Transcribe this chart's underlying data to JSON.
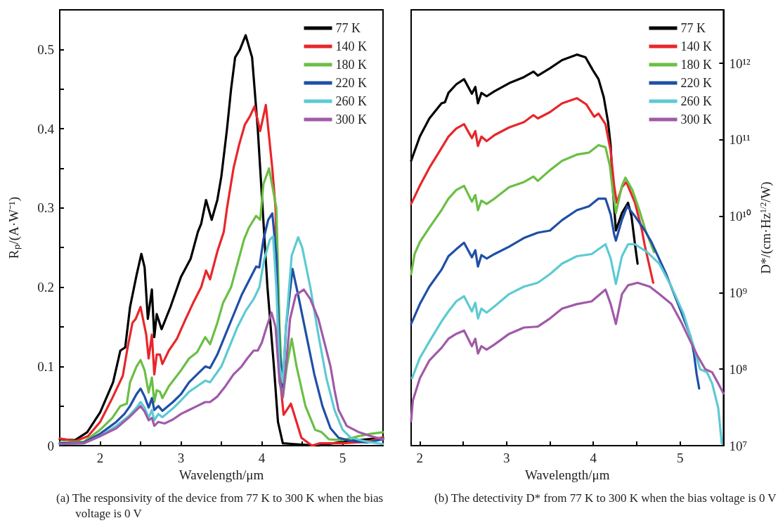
{
  "chart_data": [
    {
      "type": "line",
      "xlabel": "Wavelength/μm",
      "ylabel": "Rₚ/(A·W⁻¹)",
      "xlim": [
        1.5,
        5.5
      ],
      "ylim": [
        0,
        0.55
      ],
      "xticks": [
        2,
        {
          "value": 2.5,
          "label": null
        },
        3,
        {
          "value": 3.5,
          "label": null
        },
        4,
        {
          "value": 4.5,
          "label": null
        },
        5
      ],
      "yticks": [
        0,
        {
          "value": 0.05,
          "label": null
        },
        0.1,
        {
          "value": 0.15,
          "label": null
        },
        0.2,
        {
          "value": 0.25,
          "label": null
        },
        0.3,
        {
          "value": 0.35,
          "label": null
        },
        0.4,
        {
          "value": 0.45,
          "label": null
        },
        0.5
      ],
      "legend": "top right",
      "marker": "none",
      "annotations": [
        "(a) The responsivity of the device from 77 K to 300 K when the bias voltage is 0 V"
      ],
      "series": [
        {
          "name": "77 K",
          "color": "#000000",
          "x": [
            1.5,
            1.69,
            1.84,
            2.0,
            2.16,
            2.25,
            2.31,
            2.37,
            2.45,
            2.51,
            2.55,
            2.59,
            2.64,
            2.67,
            2.7,
            2.76,
            2.87,
            3.0,
            3.12,
            3.21,
            3.25,
            3.31,
            3.38,
            3.45,
            3.5,
            3.57,
            3.62,
            3.67,
            3.73,
            3.8,
            3.88,
            3.95,
            4.01,
            4.07,
            4.15,
            4.2,
            4.26,
            4.4,
            4.7,
            5.0,
            5.5
          ],
          "values": [
            0.008,
            0.007,
            0.017,
            0.042,
            0.08,
            0.12,
            0.124,
            0.175,
            0.215,
            0.242,
            0.225,
            0.16,
            0.197,
            0.137,
            0.166,
            0.147,
            0.175,
            0.213,
            0.236,
            0.27,
            0.28,
            0.31,
            0.285,
            0.31,
            0.34,
            0.4,
            0.45,
            0.49,
            0.5,
            0.518,
            0.49,
            0.4,
            0.3,
            0.2,
            0.1,
            0.03,
            0.003,
            0.002,
            0,
            0.005,
            0.01
          ]
        },
        {
          "name": "140 K",
          "color": "#e8262a",
          "x": [
            1.5,
            1.7,
            1.85,
            2.0,
            2.15,
            2.28,
            2.34,
            2.4,
            2.44,
            2.5,
            2.57,
            2.6,
            2.64,
            2.67,
            2.7,
            2.74,
            2.77,
            2.85,
            2.95,
            3.05,
            3.15,
            3.25,
            3.31,
            3.36,
            3.45,
            3.53,
            3.57,
            3.65,
            3.72,
            3.79,
            3.85,
            3.91,
            3.98,
            4.05,
            4.13,
            4.17,
            4.21,
            4.27,
            4.36,
            4.49,
            4.62,
            4.72,
            5.0,
            5.3,
            5.5
          ],
          "values": [
            0.009,
            0.006,
            0.012,
            0.03,
            0.06,
            0.088,
            0.124,
            0.155,
            0.16,
            0.175,
            0.14,
            0.11,
            0.14,
            0.09,
            0.115,
            0.115,
            0.103,
            0.12,
            0.135,
            0.158,
            0.18,
            0.2,
            0.221,
            0.21,
            0.245,
            0.27,
            0.3,
            0.35,
            0.38,
            0.405,
            0.415,
            0.428,
            0.397,
            0.43,
            0.35,
            0.3,
            0.1,
            0.039,
            0.053,
            0.01,
            0,
            0.003,
            0.003,
            0.005,
            0.01
          ]
        },
        {
          "name": "180 K",
          "color": "#6abf45",
          "x": [
            1.5,
            1.8,
            2.0,
            2.15,
            2.25,
            2.33,
            2.37,
            2.45,
            2.5,
            2.55,
            2.6,
            2.64,
            2.67,
            2.7,
            2.74,
            2.77,
            2.85,
            3.0,
            3.1,
            3.2,
            3.3,
            3.36,
            3.45,
            3.52,
            3.62,
            3.7,
            3.78,
            3.84,
            3.93,
            3.98,
            4.02,
            4.09,
            4.18,
            4.22,
            4.26,
            4.31,
            4.37,
            4.43,
            4.54,
            4.66,
            4.74,
            4.83,
            5.0,
            5.2,
            5.35,
            5.5
          ],
          "values": [
            0.004,
            0.005,
            0.02,
            0.035,
            0.05,
            0.053,
            0.08,
            0.1,
            0.108,
            0.095,
            0.067,
            0.086,
            0.055,
            0.07,
            0.068,
            0.06,
            0.075,
            0.095,
            0.11,
            0.118,
            0.137,
            0.128,
            0.155,
            0.18,
            0.2,
            0.23,
            0.26,
            0.275,
            0.29,
            0.285,
            0.33,
            0.35,
            0.3,
            0.15,
            0.061,
            0.1,
            0.135,
            0.1,
            0.05,
            0.02,
            0.017,
            0.008,
            0.007,
            0.012,
            0.015,
            0.017
          ]
        },
        {
          "name": "220 K",
          "color": "#1f4fa6",
          "x": [
            1.5,
            1.8,
            2.0,
            2.2,
            2.3,
            2.37,
            2.45,
            2.5,
            2.55,
            2.6,
            2.64,
            2.67,
            2.72,
            2.77,
            2.9,
            3.0,
            3.1,
            3.2,
            3.3,
            3.36,
            3.45,
            3.55,
            3.65,
            3.75,
            3.85,
            3.93,
            3.97,
            4.02,
            4.08,
            4.13,
            4.18,
            4.22,
            4.26,
            4.3,
            4.38,
            4.45,
            4.55,
            4.65,
            4.75,
            4.85,
            4.95,
            5.1,
            5.3,
            5.5
          ],
          "values": [
            0.003,
            0.004,
            0.015,
            0.03,
            0.04,
            0.05,
            0.065,
            0.072,
            0.062,
            0.048,
            0.06,
            0.045,
            0.05,
            0.044,
            0.055,
            0.065,
            0.08,
            0.09,
            0.1,
            0.098,
            0.115,
            0.14,
            0.165,
            0.19,
            0.21,
            0.226,
            0.225,
            0.26,
            0.285,
            0.293,
            0.24,
            0.12,
            0.074,
            0.15,
            0.223,
            0.19,
            0.14,
            0.09,
            0.05,
            0.022,
            0.01,
            0.006,
            0.004,
            0.008
          ]
        },
        {
          "name": "260 K",
          "color": "#5ccad3",
          "x": [
            1.5,
            1.8,
            2.0,
            2.2,
            2.35,
            2.45,
            2.5,
            2.55,
            2.6,
            2.64,
            2.67,
            2.72,
            2.77,
            2.9,
            3.0,
            3.1,
            3.2,
            3.3,
            3.36,
            3.5,
            3.6,
            3.7,
            3.8,
            3.9,
            3.97,
            4.03,
            4.1,
            4.14,
            4.18,
            4.22,
            4.26,
            4.3,
            4.37,
            4.45,
            4.5,
            4.6,
            4.7,
            4.8,
            4.9,
            5.0,
            5.1,
            5.3,
            5.5
          ],
          "values": [
            0.002,
            0.003,
            0.012,
            0.025,
            0.037,
            0.048,
            0.055,
            0.048,
            0.035,
            0.045,
            0.032,
            0.04,
            0.036,
            0.047,
            0.057,
            0.068,
            0.075,
            0.082,
            0.08,
            0.1,
            0.125,
            0.15,
            0.17,
            0.185,
            0.2,
            0.235,
            0.26,
            0.264,
            0.2,
            0.1,
            0.08,
            0.15,
            0.24,
            0.263,
            0.25,
            0.2,
            0.14,
            0.085,
            0.045,
            0.02,
            0.01,
            0.005,
            0.002
          ]
        },
        {
          "name": "300 K",
          "color": "#a05aa8",
          "x": [
            1.5,
            1.8,
            2.0,
            2.2,
            2.35,
            2.45,
            2.5,
            2.55,
            2.6,
            2.64,
            2.67,
            2.72,
            2.8,
            2.9,
            3.0,
            3.1,
            3.2,
            3.3,
            3.36,
            3.45,
            3.55,
            3.65,
            3.75,
            3.82,
            3.9,
            3.95,
            4.0,
            4.06,
            4.12,
            4.17,
            4.22,
            4.26,
            4.3,
            4.35,
            4.42,
            4.52,
            4.6,
            4.7,
            4.8,
            4.85,
            4.9,
            4.95,
            5.05,
            5.2,
            5.35,
            5.5
          ],
          "values": [
            0.002,
            0.003,
            0.012,
            0.022,
            0.035,
            0.045,
            0.05,
            0.043,
            0.032,
            0.035,
            0.025,
            0.03,
            0.028,
            0.033,
            0.04,
            0.045,
            0.05,
            0.055,
            0.055,
            0.062,
            0.075,
            0.09,
            0.1,
            0.11,
            0.12,
            0.12,
            0.13,
            0.15,
            0.168,
            0.15,
            0.08,
            0.061,
            0.1,
            0.16,
            0.19,
            0.197,
            0.185,
            0.16,
            0.12,
            0.1,
            0.07,
            0.045,
            0.025,
            0.017,
            0.012,
            0.008
          ]
        }
      ]
    },
    {
      "type": "line",
      "xlabel": "Wavelength/μm",
      "y2label": "D*/(cm·Hz$^{1/2}$/W)",
      "xlim": [
        1.9,
        5.5
      ],
      "y2lim": [
        10000000.0,
        5000000000000.0
      ],
      "log": "y2",
      "xticks": [
        2,
        {
          "value": 2.5,
          "label": null
        },
        3,
        {
          "value": 3.5,
          "label": null
        },
        4,
        {
          "value": 4.5,
          "label": null
        },
        5
      ],
      "y2ticks": [
        {
          "value": 10000000.0,
          "label": "10⁷"
        },
        {
          "value": 100000000.0,
          "label": "10⁸"
        },
        {
          "value": 1000000000.0,
          "label": "10⁹"
        },
        {
          "value": 10000000000.0,
          "label": "10¹⁰"
        },
        {
          "value": 100000000000.0,
          "label": "10¹¹"
        },
        {
          "value": 1000000000000.0,
          "label": "10¹²"
        }
      ],
      "legend": "top right",
      "marker": "none",
      "annotations": [
        "(b) The detectivity D* from 77 K to 300 K when the bias voltage is 0 V"
      ],
      "series": [
        {
          "name": "77 K",
          "color": "#000000",
          "axis": "y2",
          "x": [
            1.9,
            2.0,
            2.11,
            2.25,
            2.29,
            2.33,
            2.42,
            2.51,
            2.6,
            2.64,
            2.67,
            2.71,
            2.77,
            2.86,
            3.03,
            3.2,
            3.31,
            3.36,
            3.5,
            3.64,
            3.81,
            3.91,
            3.99,
            4.06,
            4.12,
            4.17,
            4.2,
            4.23,
            4.26,
            4.33,
            4.4,
            4.44,
            4.48,
            4.51
          ],
          "values": [
            53000000000.0,
            110000000000.0,
            190000000000.0,
            300000000000.0,
            310000000000.0,
            410000000000.0,
            530000000000.0,
            620000000000.0,
            400000000000.0,
            490000000000.0,
            300000000000.0,
            410000000000.0,
            370000000000.0,
            430000000000.0,
            550000000000.0,
            660000000000.0,
            780000000000.0,
            690000000000.0,
            860000000000.0,
            1100000000000.0,
            1300000000000.0,
            1200000000000.0,
            830000000000.0,
            620000000000.0,
            360000000000.0,
            170000000000.0,
            83000000000.0,
            19000000000.0,
            6500000000.0,
            11000000000.0,
            15000000000.0,
            10000000000.0,
            4300000000.0,
            2400000000.0
          ]
        },
        {
          "name": "140 K",
          "color": "#e8262a",
          "axis": "y2",
          "x": [
            1.9,
            2.0,
            2.11,
            2.25,
            2.33,
            2.42,
            2.51,
            2.6,
            2.64,
            2.67,
            2.71,
            2.77,
            2.86,
            3.03,
            3.2,
            3.31,
            3.36,
            3.5,
            3.64,
            3.81,
            3.92,
            4.01,
            4.06,
            4.14,
            4.2,
            4.24,
            4.27,
            4.33,
            4.38,
            4.48,
            4.56,
            4.59,
            4.69
          ],
          "values": [
            14500000000.0,
            25000000000.0,
            43000000000.0,
            78000000000.0,
            110000000000.0,
            140000000000.0,
            160000000000.0,
            105000000000.0,
            130000000000.0,
            83000000000.0,
            110000000000.0,
            96000000000.0,
            115000000000.0,
            145000000000.0,
            170000000000.0,
            210000000000.0,
            190000000000.0,
            230000000000.0,
            300000000000.0,
            350000000000.0,
            290000000000.0,
            200000000000.0,
            220000000000.0,
            160000000000.0,
            71000000000.0,
            25000000000.0,
            15000000000.0,
            24000000000.0,
            28000000000.0,
            15000000000.0,
            6600000000.0,
            4300000000.0,
            1350000000.0
          ]
        },
        {
          "name": "180 K",
          "color": "#6abf45",
          "axis": "y2",
          "x": [
            1.9,
            1.94,
            2.0,
            2.11,
            2.25,
            2.33,
            2.42,
            2.51,
            2.6,
            2.64,
            2.67,
            2.71,
            2.77,
            2.86,
            3.03,
            3.2,
            3.31,
            3.36,
            3.5,
            3.64,
            3.81,
            3.95,
            4.06,
            4.14,
            4.19,
            4.23,
            4.26,
            4.33,
            4.37,
            4.45,
            4.53,
            4.6,
            4.7
          ],
          "values": [
            1750000000.0,
            3200000000.0,
            4600000000.0,
            7100000000.0,
            12000000000.0,
            17000000000.0,
            22000000000.0,
            25000000000.0,
            15500000000.0,
            19000000000.0,
            12000000000.0,
            16000000000.0,
            14500000000.0,
            17000000000.0,
            24000000000.0,
            28000000000.0,
            33000000000.0,
            29000000000.0,
            40000000000.0,
            53000000000.0,
            64000000000.0,
            68000000000.0,
            85000000000.0,
            80000000000.0,
            46000000000.0,
            19000000000.0,
            11000000000.0,
            25000000000.0,
            32000000000.0,
            22000000000.0,
            12000000000.0,
            6600000000.0,
            3400000000.0
          ]
        },
        {
          "name": "220 K",
          "color": "#1f4fa6",
          "axis": "y2",
          "x": [
            1.9,
            2.0,
            2.11,
            2.25,
            2.33,
            2.42,
            2.51,
            2.6,
            2.64,
            2.67,
            2.71,
            2.77,
            2.86,
            3.03,
            3.2,
            3.36,
            3.5,
            3.64,
            3.81,
            3.95,
            4.06,
            4.14,
            4.2,
            4.24,
            4.26,
            4.33,
            4.39,
            4.48,
            4.59,
            4.67,
            4.84,
            5.01,
            5.12,
            5.16,
            5.19,
            5.22
          ],
          "values": [
            390000000.0,
            710000000.0,
            1200000000.0,
            2000000000.0,
            3000000000.0,
            3700000000.0,
            4500000000.0,
            2900000000.0,
            3600000000.0,
            2200000000.0,
            3100000000.0,
            2800000000.0,
            3200000000.0,
            4000000000.0,
            5200000000.0,
            6100000000.0,
            6500000000.0,
            8900000000.0,
            12000000000.0,
            13500000000.0,
            17000000000.0,
            17000000000.0,
            10500000000.0,
            5800000000.0,
            4800000000.0,
            9000000000.0,
            13500000000.0,
            10000000000.0,
            6600000000.0,
            4600000000.0,
            1750000000.0,
            570000000.0,
            270000000.0,
            160000000.0,
            87000000.0,
            56000000.0
          ]
        },
        {
          "name": "260 K",
          "color": "#5ccad3",
          "axis": "y2",
          "x": [
            1.91,
            2.0,
            2.11,
            2.25,
            2.33,
            2.42,
            2.51,
            2.6,
            2.64,
            2.67,
            2.71,
            2.77,
            2.86,
            3.03,
            3.2,
            3.36,
            3.5,
            3.64,
            3.81,
            3.98,
            4.14,
            4.2,
            4.26,
            4.33,
            4.4,
            4.48,
            4.62,
            4.76,
            4.9,
            5.04,
            5.15,
            5.23,
            5.31,
            5.37,
            5.44,
            5.48
          ],
          "values": [
            76000000.0,
            140000000.0,
            230000000.0,
            420000000.0,
            570000000.0,
            770000000.0,
            900000000.0,
            570000000.0,
            740000000.0,
            460000000.0,
            620000000.0,
            550000000.0,
            660000000.0,
            960000000.0,
            1200000000.0,
            1350000000.0,
            1750000000.0,
            2400000000.0,
            3000000000.0,
            3200000000.0,
            4300000000.0,
            2800000000.0,
            1300000000.0,
            3000000000.0,
            4300000000.0,
            4300000000.0,
            3400000000.0,
            2400000000.0,
            1200000000.0,
            530000000.0,
            210000000.0,
            100000000.0,
            91000000.0,
            65000000.0,
            31000000.0,
            10700000.0
          ]
        },
        {
          "name": "300 K",
          "color": "#a05aa8",
          "axis": "y2",
          "x": [
            1.9,
            1.92,
            2.0,
            2.11,
            2.25,
            2.33,
            2.42,
            2.51,
            2.6,
            2.64,
            2.67,
            2.71,
            2.77,
            2.86,
            3.03,
            3.2,
            3.36,
            3.5,
            3.64,
            3.81,
            3.98,
            4.14,
            4.2,
            4.26,
            4.33,
            4.4,
            4.51,
            4.65,
            4.76,
            4.9,
            5.01,
            5.12,
            5.2,
            5.29,
            5.37,
            5.44,
            5.5
          ],
          "values": [
            21000000.0,
            39000000.0,
            76000000.0,
            130000000.0,
            190000000.0,
            250000000.0,
            290000000.0,
            320000000.0,
            200000000.0,
            250000000.0,
            160000000.0,
            200000000.0,
            180000000.0,
            210000000.0,
            290000000.0,
            350000000.0,
            360000000.0,
            460000000.0,
            620000000.0,
            710000000.0,
            770000000.0,
            1100000000.0,
            710000000.0,
            390000000.0,
            960000000.0,
            1250000000.0,
            1350000000.0,
            1200000000.0,
            960000000.0,
            710000000.0,
            420000000.0,
            230000000.0,
            150000000.0,
            100000000.0,
            91000000.0,
            65000000.0,
            48000000.0
          ]
        }
      ]
    }
  ]
}
